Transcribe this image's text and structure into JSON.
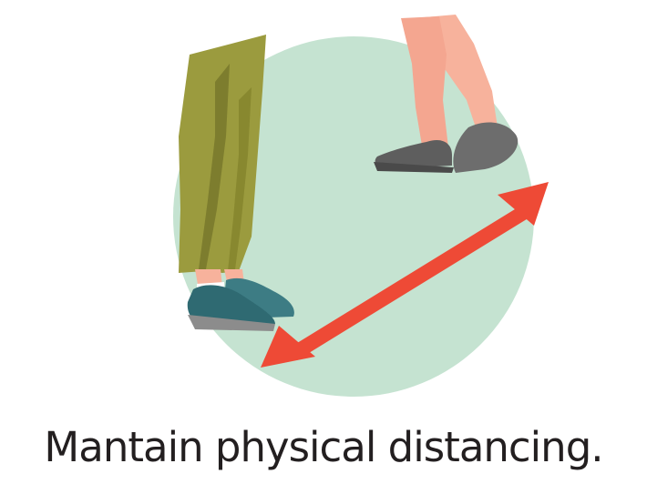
{
  "caption": "Mantain physical distancing.",
  "icon": "physical-distancing-illustration",
  "colors": {
    "circle": "#c5e3d1",
    "pants": "#9b9b3e",
    "pants_shade": "#7d7d2e",
    "skin": "#f7b29c",
    "shoe_gray": "#6d6d6d",
    "shoe_teal": "#3d7c84",
    "arrow": "#ee4a36"
  }
}
